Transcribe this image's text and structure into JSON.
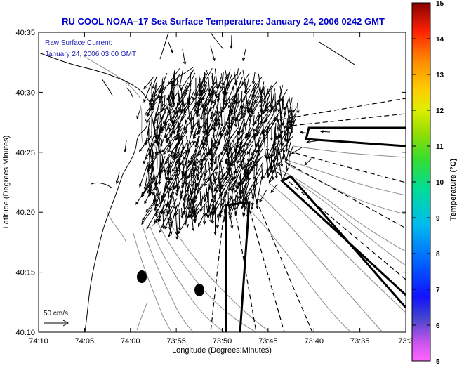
{
  "title": "RU COOL  NOAA–17  Sea Surface Temperature:  January 24, 2006 0242 GMT",
  "overlay": {
    "line1": "Raw Surface Current:",
    "line2": "January 24, 2006 03:00 GMT"
  },
  "scale_label": "50 cm/s",
  "axes": {
    "xlabel": "Longitude (Degrees:Minutes)",
    "ylabel": "Latitude (Degrees:Minutes)",
    "x_ticks": [
      "74:10",
      "74:05",
      "74:00",
      "73:55",
      "73:50",
      "73:45",
      "73:40",
      "73:35",
      "73:3"
    ],
    "y_ticks": [
      "40:35",
      "40:30",
      "40:25",
      "40:20",
      "40:15",
      "40:10"
    ]
  },
  "colorbar": {
    "label": "Temperature (°C)",
    "ticks": [
      "15",
      "14",
      "13",
      "12",
      "11",
      "10",
      "9",
      "8",
      "7",
      "6",
      "5"
    ],
    "range": [
      5,
      15
    ]
  },
  "colors": {
    "title": "#0000cc",
    "overlay_text": "#1a1ab0",
    "coast": "#000000",
    "bathymetry": "#8c8c8c"
  }
}
